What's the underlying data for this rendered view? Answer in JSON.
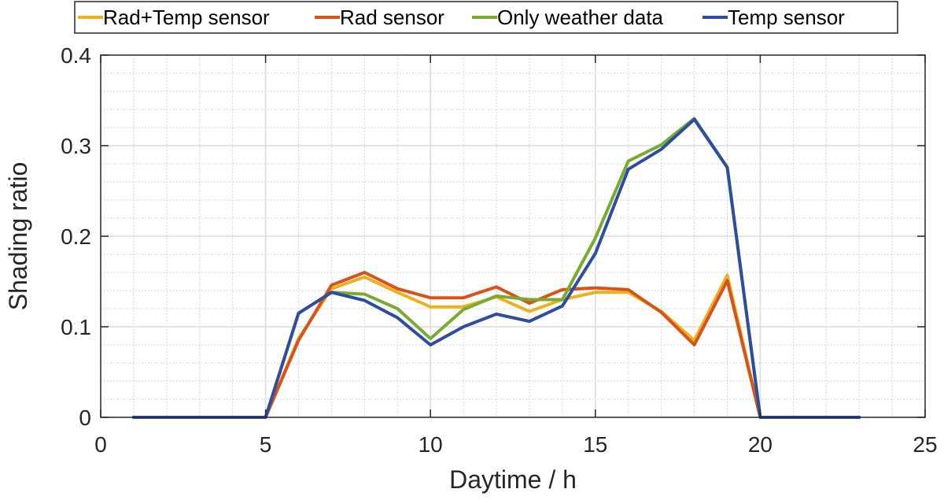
{
  "chart_data": {
    "type": "line",
    "xlabel": "Daytime / h",
    "ylabel": "Shading ratio",
    "xlim": [
      0,
      25
    ],
    "ylim": [
      0,
      0.4
    ],
    "xticks": [
      0,
      5,
      10,
      15,
      20,
      25
    ],
    "xtick_labels": [
      "0",
      "5",
      "10",
      "15",
      "20",
      "25"
    ],
    "yticks": [
      0,
      0.1,
      0.2,
      0.3,
      0.4
    ],
    "ytick_labels": [
      "0",
      "0.1",
      "0.2",
      "0.3",
      "0.4"
    ],
    "grid": true,
    "minor_grid": true,
    "legend_position": "top",
    "legend_orientation": "horizontal",
    "x": [
      1,
      2,
      3,
      4,
      5,
      6,
      7,
      8,
      9,
      10,
      11,
      12,
      13,
      14,
      15,
      16,
      17,
      18,
      19,
      20,
      21,
      22,
      23
    ],
    "series": [
      {
        "name": "Rad+Temp sensor",
        "color": "#EDB120",
        "values": [
          0,
          0,
          0,
          0,
          0,
          0.087,
          0.142,
          0.155,
          0.138,
          0.122,
          0.122,
          0.133,
          0.117,
          0.13,
          0.138,
          0.138,
          0.117,
          0.085,
          0.157,
          0,
          0,
          0,
          0
        ]
      },
      {
        "name": "Rad sensor",
        "color": "#D95319",
        "values": [
          0,
          0,
          0,
          0,
          0,
          0.085,
          0.146,
          0.16,
          0.142,
          0.132,
          0.132,
          0.144,
          0.126,
          0.141,
          0.143,
          0.141,
          0.116,
          0.08,
          0.151,
          0,
          0,
          0,
          0
        ]
      },
      {
        "name": "Only weather data",
        "color": "#77AC30",
        "values": [
          0,
          0,
          0,
          0,
          0,
          0.115,
          0.138,
          0.136,
          0.12,
          0.087,
          0.119,
          0.134,
          0.13,
          0.13,
          0.198,
          0.283,
          0.301,
          0.33,
          0.276,
          0,
          0,
          0,
          0
        ]
      },
      {
        "name": "Temp sensor",
        "color": "#2E4DA0",
        "values": [
          0,
          0,
          0,
          0,
          0,
          0.115,
          0.138,
          0.129,
          0.11,
          0.08,
          0.1,
          0.114,
          0.106,
          0.123,
          0.181,
          0.274,
          0.296,
          0.329,
          0.276,
          0,
          0,
          0,
          0
        ]
      }
    ]
  }
}
